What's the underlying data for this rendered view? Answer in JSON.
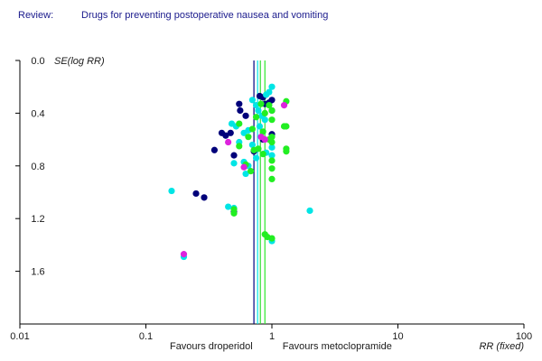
{
  "header": {
    "review_label": "Review:",
    "review_title": "Drugs for preventing postoperative nausea and vomiting"
  },
  "chart_data": {
    "type": "scatter",
    "title": "",
    "xlabel": "RR (fixed)",
    "ylabel": "SE(log RR)",
    "x_scale": "log",
    "xlim": [
      0.01,
      100
    ],
    "ylim": [
      0.0,
      2.0
    ],
    "y_inverted": true,
    "x_ticks": [
      "0.01",
      "0.1",
      "1",
      "10",
      "100"
    ],
    "y_ticks": [
      "0.0",
      "0.4",
      "0.8",
      "1.2",
      "1.6"
    ],
    "favours_left": "Favours droperidol",
    "favours_right": "Favours metoclopramide",
    "reference_lines": [
      {
        "rr": 0.72,
        "color": "#000080"
      },
      {
        "rr": 0.77,
        "color": "#00e5e5"
      },
      {
        "rr": 0.81,
        "color": "#33dd33"
      },
      {
        "rr": 0.88,
        "color": "#2ee82e"
      }
    ],
    "series": [
      {
        "color": "#00007a",
        "points": [
          [
            0.55,
            0.33
          ],
          [
            0.56,
            0.38
          ],
          [
            0.62,
            0.42
          ],
          [
            0.8,
            0.27
          ],
          [
            0.85,
            0.28
          ],
          [
            0.88,
            0.33
          ],
          [
            0.95,
            0.32
          ],
          [
            1.0,
            0.3
          ],
          [
            1.0,
            0.38
          ],
          [
            0.47,
            0.55
          ],
          [
            0.43,
            0.57
          ],
          [
            0.4,
            0.55
          ],
          [
            0.35,
            0.68
          ],
          [
            0.5,
            0.72
          ],
          [
            0.72,
            0.69
          ],
          [
            0.85,
            0.6
          ],
          [
            1.0,
            0.56
          ],
          [
            0.25,
            1.01
          ],
          [
            0.29,
            1.04
          ],
          [
            0.5,
            1.15
          ]
        ]
      },
      {
        "color": "#00e5e5",
        "points": [
          [
            1.0,
            0.2
          ],
          [
            0.95,
            0.24
          ],
          [
            0.9,
            0.26
          ],
          [
            0.7,
            0.3
          ],
          [
            0.75,
            0.34
          ],
          [
            0.78,
            0.38
          ],
          [
            0.83,
            0.42
          ],
          [
            0.88,
            0.45
          ],
          [
            0.8,
            0.5
          ],
          [
            0.65,
            0.53
          ],
          [
            0.6,
            0.55
          ],
          [
            0.52,
            0.5
          ],
          [
            0.48,
            0.48
          ],
          [
            0.55,
            0.62
          ],
          [
            0.7,
            0.64
          ],
          [
            1.0,
            0.66
          ],
          [
            1.0,
            0.72
          ],
          [
            0.9,
            0.7
          ],
          [
            0.75,
            0.74
          ],
          [
            0.6,
            0.77
          ],
          [
            0.5,
            0.78
          ],
          [
            0.65,
            0.8
          ],
          [
            0.62,
            0.86
          ],
          [
            0.16,
            0.99
          ],
          [
            0.45,
            1.11
          ],
          [
            0.5,
            1.12
          ],
          [
            2.0,
            1.14
          ],
          [
            0.2,
            1.49
          ],
          [
            1.0,
            1.37
          ]
        ]
      },
      {
        "color": "#22ee22",
        "points": [
          [
            1.3,
            0.31
          ],
          [
            0.82,
            0.33
          ],
          [
            0.95,
            0.34
          ],
          [
            0.88,
            0.4
          ],
          [
            1.0,
            0.38
          ],
          [
            0.75,
            0.43
          ],
          [
            1.0,
            0.45
          ],
          [
            1.25,
            0.5
          ],
          [
            1.3,
            0.5
          ],
          [
            0.55,
            0.48
          ],
          [
            0.7,
            0.52
          ],
          [
            0.85,
            0.54
          ],
          [
            1.0,
            0.58
          ],
          [
            0.65,
            0.58
          ],
          [
            0.95,
            0.6
          ],
          [
            1.0,
            0.62
          ],
          [
            0.55,
            0.65
          ],
          [
            0.78,
            0.67
          ],
          [
            0.72,
            0.68
          ],
          [
            1.3,
            0.67
          ],
          [
            1.3,
            0.69
          ],
          [
            0.85,
            0.71
          ],
          [
            1.0,
            0.76
          ],
          [
            1.0,
            0.82
          ],
          [
            0.62,
            0.79
          ],
          [
            0.68,
            0.84
          ],
          [
            1.0,
            0.9
          ],
          [
            0.5,
            1.13
          ],
          [
            0.5,
            1.16
          ],
          [
            0.88,
            1.32
          ],
          [
            0.92,
            1.34
          ],
          [
            1.0,
            1.35
          ]
        ]
      },
      {
        "color": "#dd22dd",
        "points": [
          [
            1.25,
            0.34
          ],
          [
            0.82,
            0.58
          ],
          [
            0.88,
            0.6
          ],
          [
            0.45,
            0.62
          ],
          [
            0.6,
            0.81
          ],
          [
            0.2,
            1.47
          ]
        ]
      }
    ]
  }
}
